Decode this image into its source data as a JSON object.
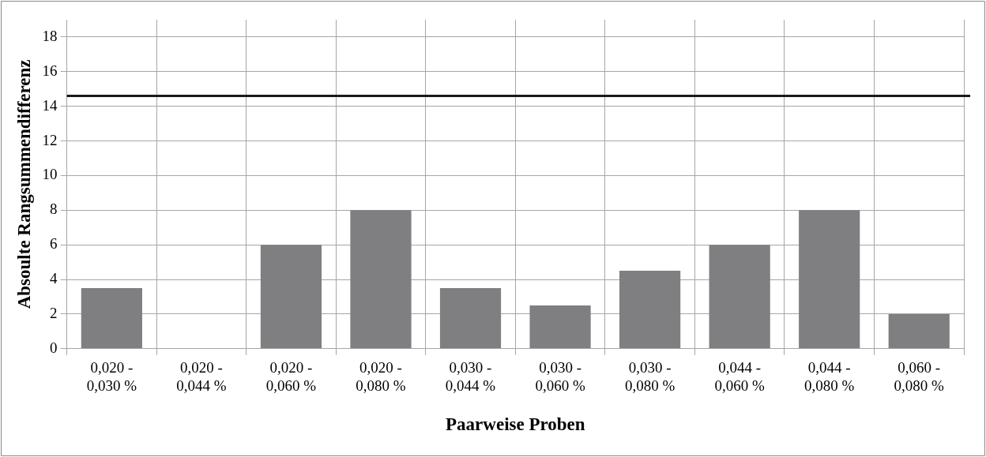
{
  "chart_data": {
    "type": "bar",
    "xlabel": "Paarweise Proben",
    "ylabel": "Absoulte Rangsummendifferenz",
    "categories": [
      "0,020 - 0,030 %",
      "0,020 - 0,044 %",
      "0,020 - 0,060 %",
      "0,020 - 0,080 %",
      "0,030 - 0,044 %",
      "0,030 - 0,060 %",
      "0,030 - 0,080 %",
      "0,044 - 0,060 %",
      "0,044 - 0,080 %",
      "0,060 - 0,080 %"
    ],
    "values": [
      3.5,
      0,
      6,
      8,
      3.5,
      2.5,
      4.5,
      6,
      8,
      2
    ],
    "color": "#7f7f82",
    "ylim": [
      0,
      19
    ],
    "yticks": [
      0,
      2,
      4,
      6,
      8,
      10,
      12,
      14,
      16,
      18
    ],
    "grid": true,
    "ref_lines": [
      {
        "axis": "y",
        "value": 14.6,
        "color": "#1a1a1a"
      }
    ]
  }
}
